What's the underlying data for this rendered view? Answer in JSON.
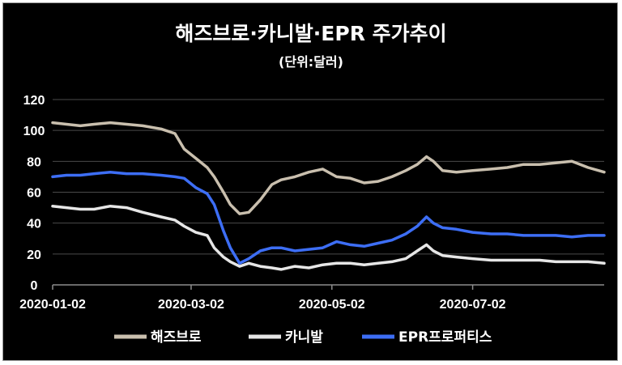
{
  "chart_data": {
    "type": "line",
    "title": "해즈브로·카니발·EPR 주가추이",
    "subtitle": "(단위:달러)",
    "xlabel": "",
    "ylabel": "",
    "ylim": [
      0,
      120
    ],
    "yticks": [
      0,
      20,
      40,
      60,
      80,
      100,
      120
    ],
    "xticks": [
      "2020-01-02",
      "2020-03-02",
      "2020-05-02",
      "2020-07-02"
    ],
    "xlim": [
      "2020-01-02",
      "2020-08-28"
    ],
    "grid": true,
    "legend_position": "bottom",
    "series": [
      {
        "name": "해즈브로",
        "color": "#c9bfae",
        "points": [
          [
            "2020-01-02",
            105
          ],
          [
            "2020-01-08",
            104
          ],
          [
            "2020-01-14",
            103
          ],
          [
            "2020-01-20",
            104
          ],
          [
            "2020-01-27",
            105
          ],
          [
            "2020-02-03",
            104
          ],
          [
            "2020-02-10",
            103
          ],
          [
            "2020-02-18",
            101
          ],
          [
            "2020-02-24",
            98
          ],
          [
            "2020-02-28",
            88
          ],
          [
            "2020-03-04",
            82
          ],
          [
            "2020-03-09",
            76
          ],
          [
            "2020-03-12",
            70
          ],
          [
            "2020-03-16",
            60
          ],
          [
            "2020-03-19",
            52
          ],
          [
            "2020-03-23",
            46
          ],
          [
            "2020-03-27",
            47
          ],
          [
            "2020-04-01",
            55
          ],
          [
            "2020-04-06",
            65
          ],
          [
            "2020-04-10",
            68
          ],
          [
            "2020-04-16",
            70
          ],
          [
            "2020-04-22",
            73
          ],
          [
            "2020-04-28",
            75
          ],
          [
            "2020-05-04",
            70
          ],
          [
            "2020-05-10",
            69
          ],
          [
            "2020-05-16",
            66
          ],
          [
            "2020-05-22",
            67
          ],
          [
            "2020-05-28",
            70
          ],
          [
            "2020-06-03",
            74
          ],
          [
            "2020-06-08",
            78
          ],
          [
            "2020-06-12",
            83
          ],
          [
            "2020-06-15",
            80
          ],
          [
            "2020-06-19",
            74
          ],
          [
            "2020-06-25",
            73
          ],
          [
            "2020-07-02",
            74
          ],
          [
            "2020-07-10",
            75
          ],
          [
            "2020-07-17",
            76
          ],
          [
            "2020-07-24",
            78
          ],
          [
            "2020-07-31",
            78
          ],
          [
            "2020-08-07",
            79
          ],
          [
            "2020-08-14",
            80
          ],
          [
            "2020-08-21",
            76
          ],
          [
            "2020-08-28",
            73
          ]
        ]
      },
      {
        "name": "카니발",
        "color": "#e6e6e6",
        "points": [
          [
            "2020-01-02",
            51
          ],
          [
            "2020-01-08",
            50
          ],
          [
            "2020-01-14",
            49
          ],
          [
            "2020-01-20",
            49
          ],
          [
            "2020-01-27",
            51
          ],
          [
            "2020-02-03",
            50
          ],
          [
            "2020-02-10",
            47
          ],
          [
            "2020-02-18",
            44
          ],
          [
            "2020-02-24",
            42
          ],
          [
            "2020-02-28",
            38
          ],
          [
            "2020-03-04",
            34
          ],
          [
            "2020-03-09",
            32
          ],
          [
            "2020-03-12",
            24
          ],
          [
            "2020-03-16",
            18
          ],
          [
            "2020-03-19",
            15
          ],
          [
            "2020-03-23",
            12
          ],
          [
            "2020-03-27",
            14
          ],
          [
            "2020-04-01",
            12
          ],
          [
            "2020-04-06",
            11
          ],
          [
            "2020-04-10",
            10
          ],
          [
            "2020-04-16",
            12
          ],
          [
            "2020-04-22",
            11
          ],
          [
            "2020-04-28",
            13
          ],
          [
            "2020-05-04",
            14
          ],
          [
            "2020-05-10",
            14
          ],
          [
            "2020-05-16",
            13
          ],
          [
            "2020-05-22",
            14
          ],
          [
            "2020-05-28",
            15
          ],
          [
            "2020-06-03",
            17
          ],
          [
            "2020-06-08",
            22
          ],
          [
            "2020-06-12",
            26
          ],
          [
            "2020-06-15",
            22
          ],
          [
            "2020-06-19",
            19
          ],
          [
            "2020-06-25",
            18
          ],
          [
            "2020-07-02",
            17
          ],
          [
            "2020-07-10",
            16
          ],
          [
            "2020-07-17",
            16
          ],
          [
            "2020-07-24",
            16
          ],
          [
            "2020-07-31",
            16
          ],
          [
            "2020-08-07",
            15
          ],
          [
            "2020-08-14",
            15
          ],
          [
            "2020-08-21",
            15
          ],
          [
            "2020-08-28",
            14
          ]
        ]
      },
      {
        "name": "EPR프로퍼티스",
        "color": "#3d6ef5",
        "points": [
          [
            "2020-01-02",
            70
          ],
          [
            "2020-01-08",
            71
          ],
          [
            "2020-01-14",
            71
          ],
          [
            "2020-01-20",
            72
          ],
          [
            "2020-01-27",
            73
          ],
          [
            "2020-02-03",
            72
          ],
          [
            "2020-02-10",
            72
          ],
          [
            "2020-02-18",
            71
          ],
          [
            "2020-02-24",
            70
          ],
          [
            "2020-02-28",
            69
          ],
          [
            "2020-03-04",
            63
          ],
          [
            "2020-03-09",
            59
          ],
          [
            "2020-03-12",
            52
          ],
          [
            "2020-03-16",
            35
          ],
          [
            "2020-03-19",
            24
          ],
          [
            "2020-03-23",
            14
          ],
          [
            "2020-03-27",
            17
          ],
          [
            "2020-04-01",
            22
          ],
          [
            "2020-04-06",
            24
          ],
          [
            "2020-04-10",
            24
          ],
          [
            "2020-04-16",
            22
          ],
          [
            "2020-04-22",
            23
          ],
          [
            "2020-04-28",
            24
          ],
          [
            "2020-05-04",
            28
          ],
          [
            "2020-05-10",
            26
          ],
          [
            "2020-05-16",
            25
          ],
          [
            "2020-05-22",
            27
          ],
          [
            "2020-05-28",
            29
          ],
          [
            "2020-06-03",
            33
          ],
          [
            "2020-06-08",
            38
          ],
          [
            "2020-06-12",
            44
          ],
          [
            "2020-06-15",
            40
          ],
          [
            "2020-06-19",
            37
          ],
          [
            "2020-06-25",
            36
          ],
          [
            "2020-07-02",
            34
          ],
          [
            "2020-07-10",
            33
          ],
          [
            "2020-07-17",
            33
          ],
          [
            "2020-07-24",
            32
          ],
          [
            "2020-07-31",
            32
          ],
          [
            "2020-08-07",
            32
          ],
          [
            "2020-08-14",
            31
          ],
          [
            "2020-08-21",
            32
          ],
          [
            "2020-08-28",
            32
          ]
        ]
      }
    ]
  }
}
